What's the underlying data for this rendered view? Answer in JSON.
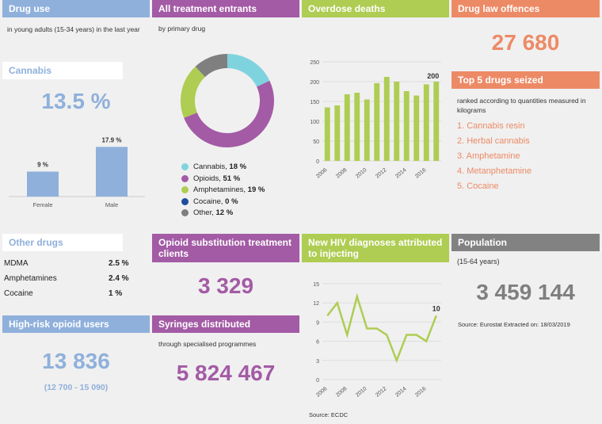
{
  "drug_use": {
    "title": "Drug use",
    "subtitle": "in young adults (15-34 years) in the last year",
    "cannabis_label": "Cannabis",
    "cannabis_value": "13.5 %",
    "bar_female_label": "Female",
    "bar_male_label": "Male",
    "bar_female_value": "9 %",
    "bar_male_value": "17.9 %"
  },
  "treatment": {
    "title": "All treatment entrants",
    "subtitle": "by primary drug",
    "legend": [
      {
        "label": "Cannabis, ",
        "pct": "18 %",
        "color": "#7fd3de"
      },
      {
        "label": "Opioids, ",
        "pct": "51 %",
        "color": "#a35ba5"
      },
      {
        "label": "Amphetamines, ",
        "pct": "19 %",
        "color": "#aecd52"
      },
      {
        "label": "Cocaine, ",
        "pct": "0 %",
        "color": "#1f4e9c"
      },
      {
        "label": "Other, ",
        "pct": "12 %",
        "color": "#7f7f7f"
      }
    ]
  },
  "overdose": {
    "title": "Overdose deaths",
    "last_label": "200"
  },
  "law": {
    "title": "Drug law offences",
    "value": "27 680"
  },
  "seized": {
    "title": "Top 5 drugs seized",
    "subtitle": "ranked according to quantities measured in kilograms",
    "items": [
      "1. Cannabis resin",
      "2. Herbal cannabis",
      "3. Amphetamine",
      "4. Metanphetamine",
      "5. Cocaine"
    ]
  },
  "other_drugs": {
    "title": "Other drugs",
    "rows": [
      {
        "name": "MDMA",
        "value": "2.5 %"
      },
      {
        "name": "Amphetamines",
        "value": "2.4 %"
      },
      {
        "name": "Cocaine",
        "value": "1 %"
      }
    ]
  },
  "opioid_sub": {
    "title": "Opioid substitution treatment clients",
    "value": "3 329"
  },
  "hiv": {
    "title": "New HIV diagnoses attributed to injecting",
    "last_label": "10",
    "source": "Source: ECDC"
  },
  "population": {
    "title": "Population",
    "subtitle": "(15-64 years)",
    "value": "3 459 144",
    "source": "Source: Eurostat Extracted on: 18/03/2019"
  },
  "high_risk": {
    "title": "High-risk opioid users",
    "value": "13 836",
    "range": "(12 700 - 15 090)"
  },
  "syringes": {
    "title": "Syringes distributed",
    "subtitle": "through specialised programmes",
    "value": "5 824 467"
  },
  "colors": {
    "blue": "#8fb0db",
    "purple": "#a35ba5",
    "green": "#aecd52",
    "orange": "#ed8a66",
    "grey": "#828282"
  },
  "chart_data": [
    {
      "type": "bar",
      "title": "",
      "categories": [
        "Female",
        "Male"
      ],
      "values": [
        9,
        17.9
      ],
      "ylim": [
        0,
        20
      ]
    },
    {
      "type": "pie",
      "categories": [
        "Cannabis",
        "Opioids",
        "Amphetamines",
        "Cocaine",
        "Other"
      ],
      "values": [
        18,
        51,
        19,
        0,
        12
      ],
      "colors": [
        "#7fd3de",
        "#a35ba5",
        "#aecd52",
        "#1f4e9c",
        "#7f7f7f"
      ]
    },
    {
      "type": "bar",
      "x": [
        2006,
        2007,
        2008,
        2009,
        2010,
        2011,
        2012,
        2013,
        2014,
        2015,
        2016,
        2017
      ],
      "values": [
        135,
        140,
        168,
        172,
        155,
        196,
        212,
        200,
        176,
        165,
        193,
        200
      ],
      "xticks": [
        "2006",
        "2008",
        "2010",
        "2012",
        "2014",
        "2016"
      ],
      "yticks": [
        0,
        50,
        100,
        150,
        200,
        250
      ],
      "ylim": [
        0,
        250
      ]
    },
    {
      "type": "line",
      "x": [
        2006,
        2007,
        2008,
        2009,
        2010,
        2011,
        2012,
        2013,
        2014,
        2015,
        2016,
        2017
      ],
      "values": [
        10,
        12,
        7,
        13,
        8,
        8,
        7,
        3,
        7,
        7,
        6,
        10
      ],
      "xticks": [
        "2006",
        "2008",
        "2010",
        "2012",
        "2014",
        "2016"
      ],
      "yticks": [
        0,
        3,
        6,
        9,
        12,
        15
      ],
      "ylim": [
        0,
        15
      ]
    }
  ]
}
